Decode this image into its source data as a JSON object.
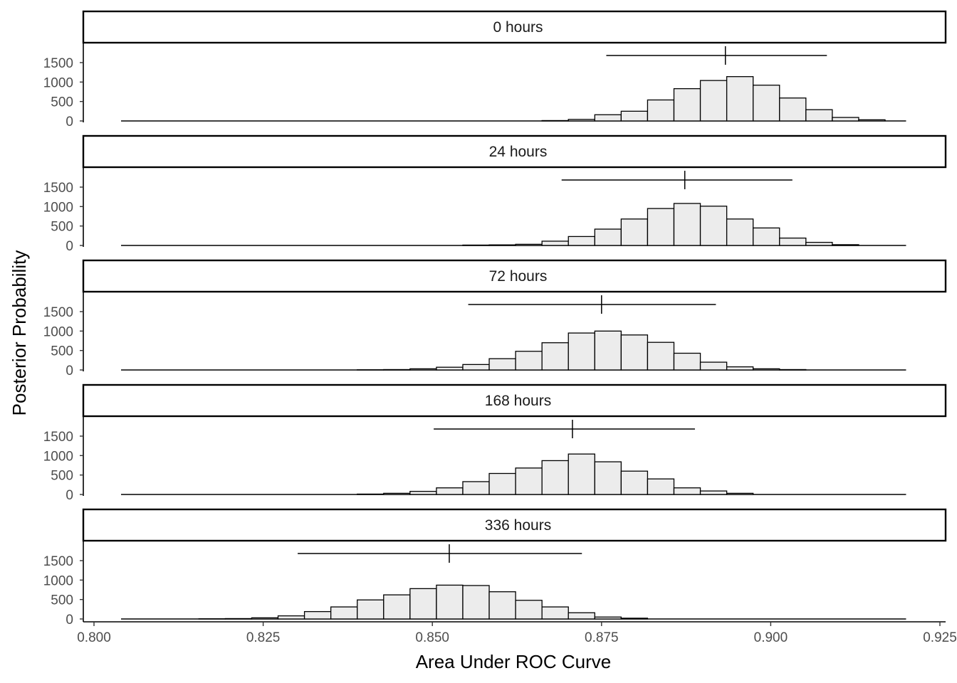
{
  "chart_data": {
    "type": "histogram",
    "facet_by": "time",
    "xlabel": "Area Under ROC Curve",
    "ylabel": "Posterior Probability",
    "xlim": [
      0.8,
      0.925
    ],
    "ylim": [
      0,
      1700
    ],
    "x_ticks": [
      "0.800",
      "0.825",
      "0.850",
      "0.875",
      "0.900",
      "0.925"
    ],
    "x_tick_values": [
      0.8,
      0.825,
      0.85,
      0.875,
      0.9,
      0.925
    ],
    "y_ticks": [
      "0",
      "500",
      "1000",
      "1500"
    ],
    "y_tick_values": [
      0,
      500,
      1000,
      1500
    ],
    "baseline_range": [
      0.804,
      0.92
    ],
    "bin_width": 0.0039,
    "grid": false,
    "panels": [
      {
        "label": "0 hours",
        "bin_start": 0.8662,
        "counts": [
          10,
          40,
          160,
          250,
          540,
          830,
          1040,
          1140,
          920,
          590,
          290,
          90,
          30
        ],
        "interval": [
          0.8757,
          0.9083
        ],
        "point": 0.8933
      },
      {
        "label": "24 hours",
        "bin_start": 0.8545,
        "counts": [
          10,
          15,
          30,
          110,
          230,
          420,
          680,
          950,
          1080,
          1010,
          680,
          450,
          190,
          80,
          20
        ],
        "interval": [
          0.8691,
          0.9032
        ],
        "point": 0.8873
      },
      {
        "label": "72 hours",
        "bin_start": 0.8389,
        "counts": [
          5,
          10,
          30,
          70,
          140,
          290,
          480,
          700,
          950,
          1000,
          900,
          710,
          430,
          200,
          80,
          30,
          10
        ],
        "interval": [
          0.8553,
          0.8919
        ],
        "point": 0.875
      },
      {
        "label": "168 hours",
        "bin_start": 0.8389,
        "counts": [
          10,
          30,
          80,
          170,
          330,
          540,
          680,
          870,
          1040,
          840,
          600,
          400,
          170,
          90,
          30
        ],
        "interval": [
          0.8502,
          0.8888
        ],
        "point": 0.8707
      },
      {
        "label": "336 hours",
        "bin_start": 0.8155,
        "counts": [
          5,
          10,
          30,
          80,
          190,
          310,
          490,
          620,
          780,
          870,
          860,
          700,
          480,
          310,
          160,
          50,
          20
        ],
        "interval": [
          0.8301,
          0.8721
        ],
        "point": 0.8525
      }
    ]
  }
}
